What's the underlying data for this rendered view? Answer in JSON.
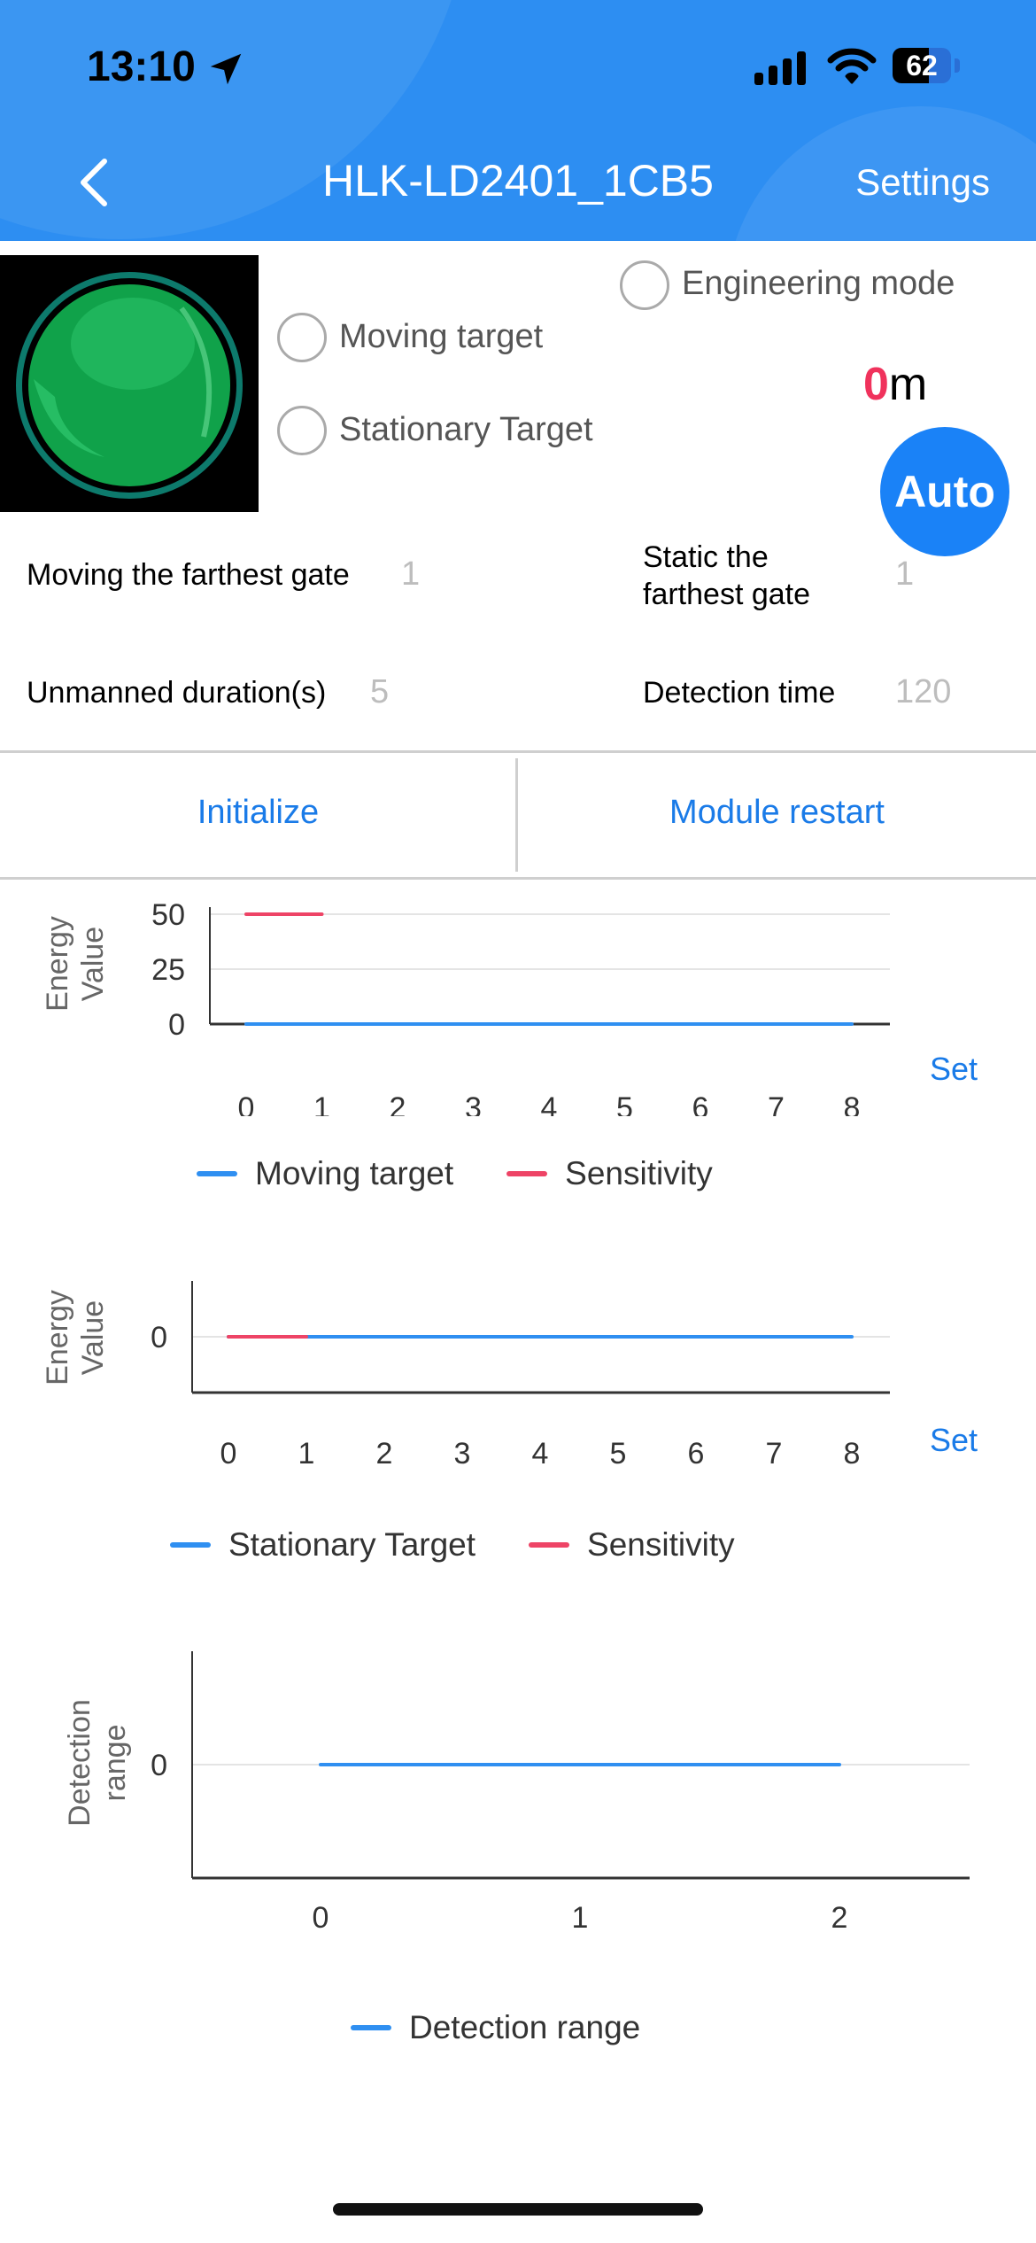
{
  "status_bar": {
    "time": "13:10",
    "battery": "62",
    "battery_level": 0.62,
    "icons": [
      "location-arrow-icon",
      "cellular-signal-icon",
      "wifi-icon",
      "battery-icon"
    ]
  },
  "header": {
    "title": "HLK-LD2401_1CB5",
    "settings_label": "Settings",
    "back_icon": "chevron-left-icon"
  },
  "colors": {
    "header_bg": "#2d8ef2",
    "accent": "#1a7be8",
    "moving": "#2f8ff1",
    "sensitivity": "#ee4466",
    "distance_number": "#f0325c",
    "orb_green": "#10a24a"
  },
  "options": {
    "engineering_mode": "Engineering mode",
    "moving_target": "Moving target",
    "stationary_target": "Stationary Target"
  },
  "distance": {
    "value": "0",
    "unit": "m"
  },
  "auto_button": "Auto",
  "params": {
    "moving_gate_label": "Moving the farthest gate",
    "moving_gate_value": "1",
    "static_gate_label_1": "Static the",
    "static_gate_label_2": "farthest gate",
    "static_gate_value": "1",
    "unmanned_label": "Unmanned duration(s)",
    "unmanned_value": "5",
    "detection_time_label": "Detection time",
    "detection_time_value": "120"
  },
  "actions": {
    "initialize": "Initialize",
    "module_restart": "Module restart"
  },
  "chart_data": [
    {
      "type": "line",
      "ylabel_1": "Energy",
      "ylabel_2": "Value",
      "x": [
        0,
        1,
        2,
        3,
        4,
        5,
        6,
        7,
        8
      ],
      "ylim": [
        0,
        50
      ],
      "yticks": [
        "0",
        "25",
        "50"
      ],
      "grid": true,
      "series": [
        {
          "name": "Moving target",
          "x": [
            0,
            1,
            2,
            3,
            4,
            5,
            6,
            7,
            8
          ],
          "values": [
            0,
            0,
            0,
            0,
            0,
            0,
            0,
            0,
            0
          ]
        },
        {
          "name": "Sensitivity",
          "x": [
            0,
            1
          ],
          "values": [
            50,
            50
          ]
        }
      ],
      "set_label": "Set",
      "legend": "bottom"
    },
    {
      "type": "line",
      "ylabel_1": "Energy",
      "ylabel_2": "Value",
      "x": [
        0,
        1,
        2,
        3,
        4,
        5,
        6,
        7,
        8
      ],
      "yticks": [
        "0"
      ],
      "grid": true,
      "series": [
        {
          "name": "Stationary Target",
          "x": [
            0,
            1,
            2,
            3,
            4,
            5,
            6,
            7,
            8
          ],
          "values": [
            0,
            0,
            0,
            0,
            0,
            0,
            0,
            0,
            0
          ]
        },
        {
          "name": "Sensitivity",
          "x": [
            0,
            1
          ],
          "values": [
            0,
            0
          ]
        }
      ],
      "set_label": "Set",
      "legend": "bottom"
    },
    {
      "type": "line",
      "ylabel_1": "Detection",
      "ylabel_2": "range",
      "x": [
        0,
        1,
        2
      ],
      "yticks": [
        "0"
      ],
      "grid": true,
      "series": [
        {
          "name": "Detection range",
          "x": [
            0,
            1,
            2
          ],
          "values": [
            0,
            0,
            0
          ]
        }
      ],
      "legend": "bottom"
    }
  ]
}
